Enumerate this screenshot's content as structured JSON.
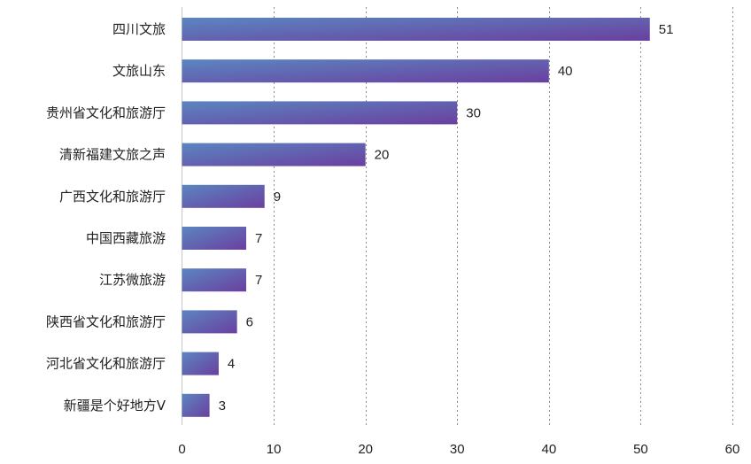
{
  "chart_data": {
    "type": "bar",
    "orientation": "horizontal",
    "title": "",
    "xlabel": "",
    "ylabel": "",
    "categories": [
      "四川文旅",
      "文旅山东",
      "贵州省文化和旅游厅",
      "清新福建文旅之声",
      "广西文化和旅游厅",
      "中国西藏旅游",
      "江苏微旅游",
      "陕西省文化和旅游厅",
      "河北省文化和旅游厅",
      "新疆是个好地方V"
    ],
    "values": [
      51,
      40,
      30,
      20,
      9,
      7,
      7,
      6,
      4,
      3
    ],
    "xlim": [
      0,
      60
    ],
    "xticks": [
      0,
      10,
      20,
      30,
      40,
      50,
      60
    ],
    "grid": "vertical dotted",
    "legend": "none",
    "bar_gradient": [
      "#5b86c0",
      "#6a3fa0"
    ]
  }
}
